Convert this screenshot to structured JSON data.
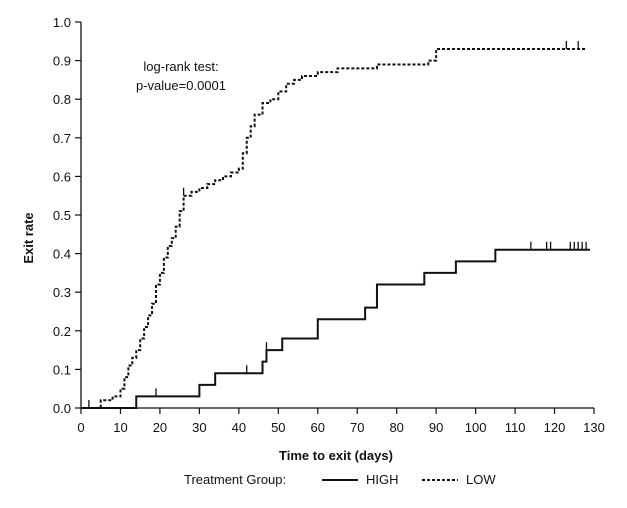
{
  "chart_data": {
    "type": "line",
    "title": "",
    "xlabel": "Time to exit (days)",
    "ylabel": "Exit rate",
    "xlim": [
      0,
      130
    ],
    "ylim": [
      0,
      1.0
    ],
    "x_ticks": [
      0,
      10,
      20,
      30,
      40,
      50,
      60,
      70,
      80,
      90,
      100,
      110,
      120,
      130
    ],
    "y_ticks": [
      "0.0",
      "0.1",
      "0.2",
      "0.3",
      "0.4",
      "0.5",
      "0.6",
      "0.7",
      "0.8",
      "0.9",
      "1.0"
    ],
    "grid": false,
    "step": true,
    "annotation": [
      "log-rank test:",
      "p-value=0.0001"
    ],
    "legend": {
      "title": "Treatment Group:",
      "placement": "bottom",
      "entries": [
        {
          "label": "HIGH",
          "style": "solid"
        },
        {
          "label": "LOW",
          "style": "dashed"
        }
      ]
    },
    "series": [
      {
        "name": "HIGH",
        "style": "solid",
        "color": "#111111",
        "x": [
          0,
          14,
          30,
          34,
          46,
          47,
          51,
          60,
          72,
          75,
          87,
          95,
          105,
          129
        ],
        "y": [
          0.0,
          0.03,
          0.06,
          0.09,
          0.12,
          0.15,
          0.18,
          0.23,
          0.26,
          0.32,
          0.35,
          0.38,
          0.41,
          0.41
        ],
        "censored": [
          2,
          19,
          42,
          47,
          114,
          118,
          119,
          124,
          125,
          126,
          127,
          128
        ]
      },
      {
        "name": "LOW",
        "style": "dashed",
        "color": "#111111",
        "x": [
          0,
          5,
          8,
          10,
          11,
          12,
          13,
          14,
          15,
          16,
          17,
          18,
          19,
          20,
          21,
          22,
          23,
          24,
          25,
          26,
          28,
          30,
          32,
          34,
          36,
          38,
          40,
          41,
          42,
          43,
          44,
          46,
          48,
          50,
          52,
          54,
          56,
          60,
          65,
          70,
          75,
          80,
          88,
          90,
          128
        ],
        "y": [
          0.0,
          0.02,
          0.03,
          0.05,
          0.08,
          0.11,
          0.13,
          0.15,
          0.18,
          0.21,
          0.24,
          0.27,
          0.32,
          0.35,
          0.39,
          0.42,
          0.44,
          0.47,
          0.51,
          0.55,
          0.56,
          0.57,
          0.58,
          0.59,
          0.6,
          0.61,
          0.62,
          0.66,
          0.7,
          0.73,
          0.76,
          0.79,
          0.8,
          0.82,
          0.84,
          0.85,
          0.86,
          0.87,
          0.88,
          0.88,
          0.89,
          0.89,
          0.9,
          0.93,
          0.93
        ],
        "censored": [
          26,
          123,
          126
        ]
      }
    ]
  }
}
